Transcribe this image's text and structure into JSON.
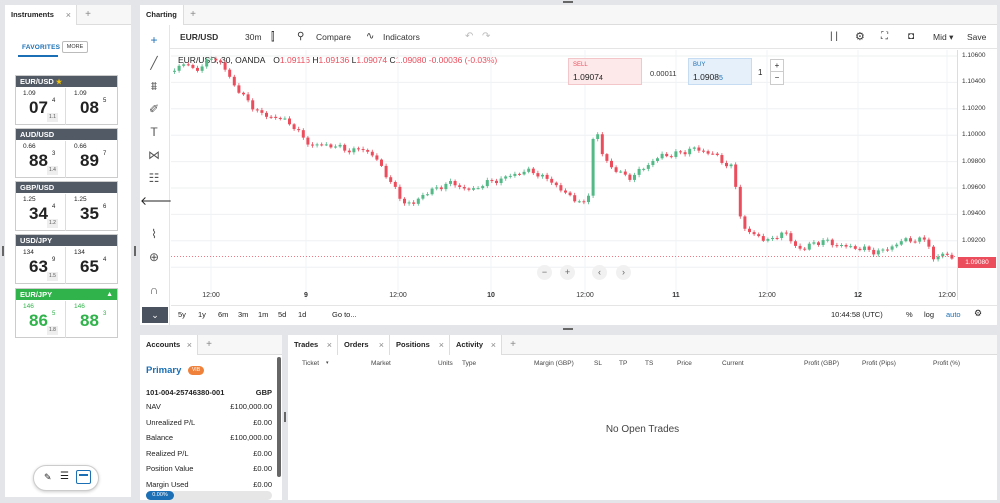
{
  "instruments": {
    "tab_label": "Instruments",
    "favorites_label": "FAVORITES",
    "more_label": "MORE",
    "quotes": [
      {
        "pair": "EUR/USD",
        "star": "★",
        "sell_small": "1.09",
        "sell_big": "07",
        "sell_sup": "4",
        "buy_small": "1.09",
        "buy_big": "08",
        "buy_sup": "5",
        "spread": "1.1"
      },
      {
        "pair": "AUD/USD",
        "sell_small": "0.66",
        "sell_big": "88",
        "sell_sup": "3",
        "buy_small": "0.66",
        "buy_big": "89",
        "buy_sup": "7",
        "spread": "1.4"
      },
      {
        "pair": "GBP/USD",
        "sell_small": "1.25",
        "sell_big": "34",
        "sell_sup": "4",
        "buy_small": "1.25",
        "buy_big": "35",
        "buy_sup": "6",
        "spread": "1.2"
      },
      {
        "pair": "USD/JPY",
        "sell_small": "134",
        "sell_big": "63",
        "sell_sup": "9",
        "buy_small": "134",
        "buy_big": "65",
        "buy_sup": "4",
        "spread": "1.5"
      },
      {
        "pair": "EUR/JPY",
        "arrow": "▲",
        "sell_small": "146",
        "sell_big": "86",
        "sell_sup": "5",
        "buy_small": "146",
        "buy_big": "88",
        "buy_sup": "3",
        "spread": "1.8"
      }
    ]
  },
  "charting": {
    "tab_label": "Charting",
    "symbol": "EUR/USD",
    "interval": "30m",
    "compare_label": "Compare",
    "indicators_label": "Indicators",
    "price_type": "Mid",
    "save_label": "Save",
    "legend": {
      "title": "EUR/USD, 30, OANDA",
      "o_label": "O",
      "o": "1.09116",
      "h_label": "H",
      "h": "1.09136",
      "l_label": "L",
      "l": "1.09074",
      "c_label": "C",
      "c": "1.09080",
      "change": "-0.00036 (-0.03%)"
    },
    "sell": {
      "label": "SELL",
      "price": "1.0907",
      "last": "4"
    },
    "spread": "0.00011",
    "buy": {
      "label": "BUY",
      "price": "1.0908",
      "last": "5"
    },
    "quantity": "1",
    "price_axis": [
      "1.10600",
      "1.10400",
      "1.10200",
      "1.10000",
      "1.09800",
      "1.09600",
      "1.09400",
      "1.09200",
      "1.09000"
    ],
    "current_price": "1.09080",
    "time_axis": [
      "12:00",
      "9",
      "12:00",
      "10",
      "12:00",
      "11",
      "12:00",
      "12",
      "12:00"
    ],
    "ranges": [
      "5y",
      "1y",
      "6m",
      "3m",
      "1m",
      "5d",
      "1d"
    ],
    "goto_label": "Go to...",
    "clock": "10:44:58 (UTC)",
    "pct_label": "%",
    "log_label": "log",
    "auto_label": "auto"
  },
  "accounts": {
    "tab_label": "Accounts",
    "name": "Primary",
    "badge": "VIB",
    "account_id": "101-004-25746380-001",
    "currency": "GBP",
    "rows": [
      {
        "label": "NAV",
        "value": "£100,000.00"
      },
      {
        "label": "Unrealized P/L",
        "value": "£0.00"
      },
      {
        "label": "Balance",
        "value": "£100,000.00"
      },
      {
        "label": "Realized P/L",
        "value": "£0.00"
      },
      {
        "label": "Position Value",
        "value": "£0.00"
      },
      {
        "label": "Margin Used",
        "value": "£0.00"
      }
    ],
    "margin_pct": "0.00%"
  },
  "trades": {
    "tabs": [
      "Trades",
      "Orders",
      "Positions",
      "Activity"
    ],
    "columns": [
      "Ticket",
      "Market",
      "Units",
      "Type",
      "Margin (GBP)",
      "SL",
      "TP",
      "TS",
      "Price",
      "Current",
      "Profit (GBP)",
      "Profit (Pips)",
      "Profit (%)"
    ],
    "empty_message": "No Open Trades"
  },
  "colors": {
    "accent": "#1a6fb5",
    "up": "#53b987",
    "down": "#eb4d5c",
    "header": "#525a66",
    "green": "#2fb34a"
  }
}
